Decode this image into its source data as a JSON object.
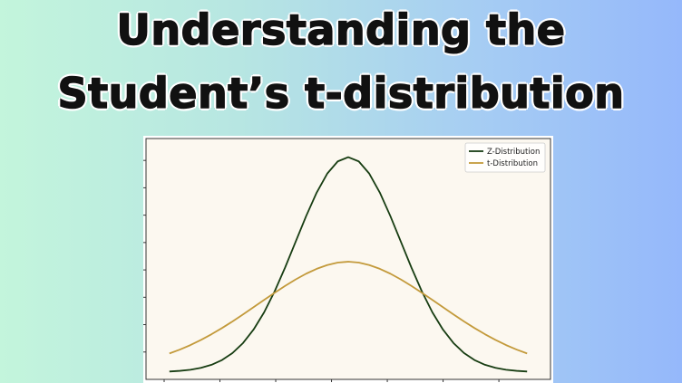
{
  "title": {
    "line1": "Understanding the",
    "line2": "Student’s t-distribution"
  },
  "chart_data": {
    "type": "line",
    "title": "",
    "xlabel": "",
    "ylabel": "",
    "xlim": [
      -3.5,
      3.5
    ],
    "ylim": [
      0,
      0.42
    ],
    "grid": false,
    "legend_position": "top-right",
    "series": [
      {
        "name": "Z-Distribution",
        "color": "#173d12",
        "x": [
          -3.4,
          -3.2,
          -3.0,
          -2.8,
          -2.6,
          -2.4,
          -2.2,
          -2.0,
          -1.8,
          -1.6,
          -1.4,
          -1.2,
          -1.0,
          -0.8,
          -0.6,
          -0.4,
          -0.2,
          0.0,
          0.2,
          0.4,
          0.6,
          0.8,
          1.0,
          1.2,
          1.4,
          1.6,
          1.8,
          2.0,
          2.2,
          2.4,
          2.6,
          2.8,
          3.0,
          3.2,
          3.4
        ],
        "values": [
          0.0012,
          0.0024,
          0.0044,
          0.0079,
          0.0136,
          0.0224,
          0.0355,
          0.054,
          0.079,
          0.1109,
          0.1497,
          0.1942,
          0.242,
          0.2897,
          0.3332,
          0.3683,
          0.391,
          0.3989,
          0.391,
          0.3683,
          0.3332,
          0.2897,
          0.242,
          0.1942,
          0.1497,
          0.1109,
          0.079,
          0.054,
          0.0355,
          0.0224,
          0.0136,
          0.0079,
          0.0044,
          0.0024,
          0.0012
        ]
      },
      {
        "name": "t-Distribution",
        "color": "#c39a3b",
        "x": [
          -3.4,
          -3.2,
          -3.0,
          -2.8,
          -2.6,
          -2.4,
          -2.2,
          -2.0,
          -1.8,
          -1.6,
          -1.4,
          -1.2,
          -1.0,
          -0.8,
          -0.6,
          -0.4,
          -0.2,
          0.0,
          0.2,
          0.4,
          0.6,
          0.8,
          1.0,
          1.2,
          1.4,
          1.6,
          1.8,
          2.0,
          2.2,
          2.4,
          2.6,
          2.8,
          3.0,
          3.2,
          3.4
        ],
        "values": [
          0.0347,
          0.0419,
          0.0502,
          0.0597,
          0.0703,
          0.0818,
          0.0941,
          0.1071,
          0.1205,
          0.1339,
          0.1472,
          0.16,
          0.172,
          0.1827,
          0.1917,
          0.1987,
          0.2033,
          0.2049,
          0.2033,
          0.1987,
          0.1917,
          0.1827,
          0.172,
          0.16,
          0.1472,
          0.1339,
          0.1205,
          0.1071,
          0.0941,
          0.0818,
          0.0703,
          0.0597,
          0.0502,
          0.0419,
          0.0347
        ]
      }
    ]
  }
}
